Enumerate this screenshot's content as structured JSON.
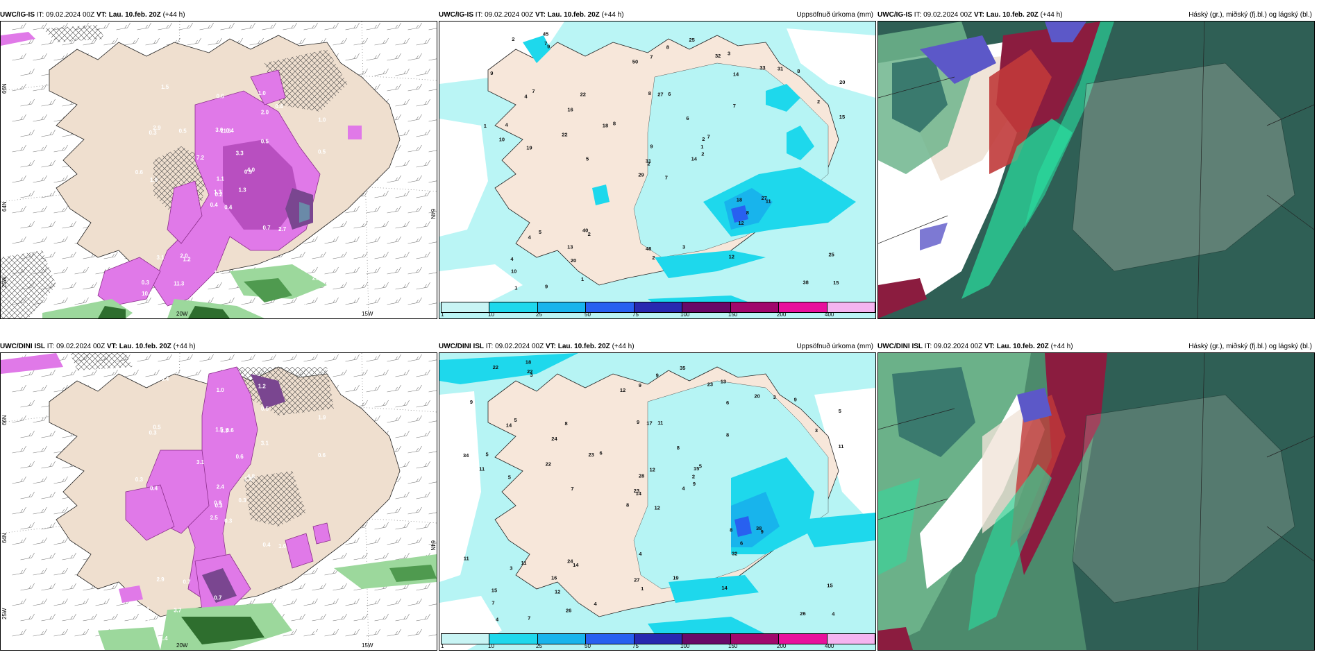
{
  "panels": [
    {
      "model": "UWC/IG-IS",
      "it_label": "IT:",
      "it_time": "09.02.2024 00Z",
      "vt_label": "VT:",
      "vt_time": "Lau. 10.feb. 20Z",
      "lead": "(+44 h)",
      "right_title": ""
    },
    {
      "model": "UWC/IG-IS",
      "it_label": "IT:",
      "it_time": "09.02.2024 00Z",
      "vt_label": "VT:",
      "vt_time": "Lau. 10.feb. 20Z",
      "lead": "(+44 h)",
      "right_title": "Uppsöfnuð úrkoma (mm)"
    },
    {
      "model": "UWC/IG-IS",
      "it_label": "IT:",
      "it_time": "09.02.2024 00Z",
      "vt_label": "VT:",
      "vt_time": "Lau. 10.feb. 20Z",
      "lead": "(+44 h)",
      "right_title": "Háský (gr.), miðský (fj.bl.) og lágský (bl.)"
    },
    {
      "model": "UWC/DINI ISL",
      "it_label": "IT:",
      "it_time": "09.02.2024 00Z",
      "vt_label": "VT:",
      "vt_time": "Lau. 10.feb. 20Z",
      "lead": "(+44 h)",
      "right_title": ""
    },
    {
      "model": "UWC/DINI ISL",
      "it_label": "IT:",
      "it_time": "09.02.2024 00Z",
      "vt_label": "VT:",
      "vt_time": "Lau. 10.feb. 20Z",
      "lead": "(+44 h)",
      "right_title": "Uppsöfnuð úrkoma (mm)"
    },
    {
      "model": "UWC/DINI ISL",
      "it_label": "IT:",
      "it_time": "09.02.2024 00Z",
      "vt_label": "VT:",
      "vt_time": "Lau. 10.feb. 20Z",
      "lead": "(+44 h)",
      "right_title": "Háský (gr.), miðský (fj.bl.) og lágský (bl.)"
    }
  ],
  "axis_labels": {
    "lat_top": "66N",
    "lat_mid": "64N",
    "lon_bottom": "25W",
    "lon_mid": "20W",
    "lon_right": "15W",
    "lat_right_top": "65N",
    "lat_right_mid": "64N"
  },
  "colorbar": {
    "labels": [
      "1",
      "10",
      "25",
      "50",
      "75",
      "100",
      "150",
      "200",
      "400"
    ],
    "colors": [
      "#c8f4f4",
      "#1ed8ec",
      "#18b4ec",
      "#2860f0",
      "#2828b0",
      "#680868",
      "#a0086c",
      "#e8109c",
      "#f4b4f0"
    ]
  },
  "precip_values_top": [
    "7",
    "4",
    "2",
    "4",
    "2",
    "2",
    "3",
    "6",
    "14",
    "14",
    "9",
    "15",
    "19",
    "20",
    "29",
    "7",
    "9",
    "8",
    "6",
    "5",
    "8",
    "10",
    "20",
    "27",
    "7",
    "11",
    "7",
    "7",
    "10",
    "18",
    "15",
    "31",
    "48",
    "9",
    "22",
    "33",
    "40",
    "38",
    "25",
    "27",
    "25",
    "18",
    "22",
    "12",
    "1",
    "1",
    "1",
    "1",
    "2",
    "2",
    "4",
    "2",
    "9",
    "8",
    "12",
    "13",
    "7",
    "2",
    "3",
    "8",
    "8",
    "5",
    "4",
    "16",
    "31",
    "45",
    "32",
    "50"
  ],
  "precip_values_bottom": [
    "12",
    "14",
    "14",
    "15",
    "15",
    "14",
    "13",
    "11",
    "6",
    "4",
    "3",
    "4",
    "5",
    "5",
    "8",
    "8",
    "7",
    "9",
    "8",
    "11",
    "6",
    "7",
    "12",
    "17",
    "5",
    "9",
    "5",
    "9",
    "11",
    "8",
    "11",
    "23",
    "27",
    "28",
    "8",
    "20",
    "24",
    "26",
    "15",
    "38",
    "35",
    "23",
    "22",
    "32",
    "26",
    "34",
    "2",
    "4",
    "1",
    "9",
    "3",
    "3",
    "9",
    "6",
    "14",
    "16",
    "22",
    "22",
    "19",
    "9",
    "9",
    "7",
    "5",
    "24",
    "3",
    "18",
    "23",
    "12",
    "12",
    "11",
    "4",
    "4"
  ],
  "precip_small_top": [
    "0.4",
    "0.3",
    "0.2",
    "0.3",
    "0.9",
    "1.2",
    "1.0",
    "0.4",
    "2.0",
    "1.3",
    "1.5",
    "2.2",
    "1.9",
    "1.0",
    "0.4",
    "0.5",
    "1.4",
    "3.0",
    "3.3",
    "3.1",
    "7.2",
    "10.6",
    "11.3",
    "11.6",
    "4.0",
    "2.7",
    "2.9",
    "0.6",
    "0.6",
    "0.7",
    "0.5",
    "1.3",
    "1.0",
    "1.1",
    "0.5",
    "0.4",
    "2.0",
    "1.6",
    "2.2"
  ],
  "precip_small_bottom": [
    "0.3",
    "0.3",
    "0.3",
    "0.4",
    "1.4",
    "0.7",
    "1.2",
    "0.6",
    "0.5",
    "0.3",
    "0.4",
    "0.8",
    "0.4",
    "1.9",
    "2.5",
    "3.1",
    "1.4",
    "1.5",
    "0.6",
    "2.9",
    "3.1",
    "1.7",
    "3.7",
    "3.3",
    "4.8",
    "1.0",
    "0.5",
    "1.0",
    "0.3",
    "0.4",
    "0.6",
    "0.8",
    "0.7",
    "2.4"
  ]
}
